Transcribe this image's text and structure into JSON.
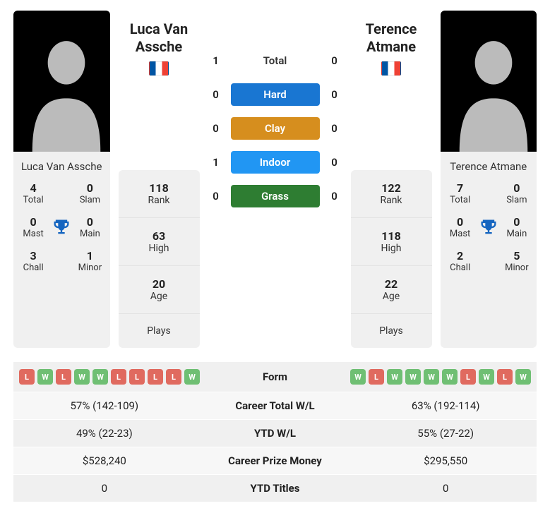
{
  "colors": {
    "hard": "#1976d2",
    "clay": "#d68e1e",
    "indoor": "#2196f3",
    "grass": "#2e7d32",
    "win_chip": "#6fbf73",
    "loss_chip": "#e06a5f",
    "panel_bg": "#f0f0f0",
    "trophy": "#1565c0"
  },
  "player1": {
    "name": "Luca Van Assche",
    "rank": "118",
    "high": "63",
    "age": "20",
    "plays": "",
    "trophies": {
      "total": "4",
      "slam": "0",
      "mast": "0",
      "main": "0",
      "chall": "3",
      "minor": "1"
    }
  },
  "player2": {
    "name": "Terence Atmane",
    "rank": "122",
    "high": "118",
    "age": "22",
    "plays": "",
    "trophies": {
      "total": "7",
      "slam": "0",
      "mast": "0",
      "main": "0",
      "chall": "2",
      "minor": "5"
    }
  },
  "labels": {
    "rank": "Rank",
    "high": "High",
    "age": "Age",
    "plays": "Plays",
    "total": "Total",
    "slam": "Slam",
    "mast": "Mast",
    "main": "Main",
    "chall": "Chall",
    "minor": "Minor"
  },
  "h2h": [
    {
      "p1": "1",
      "label": "Total",
      "p2": "0",
      "pill": false
    },
    {
      "p1": "0",
      "label": "Hard",
      "p2": "0",
      "pill": true,
      "color_key": "hard"
    },
    {
      "p1": "0",
      "label": "Clay",
      "p2": "0",
      "pill": true,
      "color_key": "clay"
    },
    {
      "p1": "1",
      "label": "Indoor",
      "p2": "0",
      "pill": true,
      "color_key": "indoor"
    },
    {
      "p1": "0",
      "label": "Grass",
      "p2": "0",
      "pill": true,
      "color_key": "grass"
    }
  ],
  "form": {
    "p1": [
      "L",
      "W",
      "L",
      "W",
      "W",
      "L",
      "L",
      "L",
      "L",
      "W"
    ],
    "p2": [
      "W",
      "L",
      "W",
      "W",
      "W",
      "W",
      "L",
      "W",
      "L",
      "W"
    ]
  },
  "bottom_rows": [
    {
      "label": "Form",
      "type": "form"
    },
    {
      "label": "Career Total W/L",
      "p1": "57% (142-109)",
      "p2": "63% (192-114)"
    },
    {
      "label": "YTD W/L",
      "p1": "49% (22-23)",
      "p2": "55% (27-22)"
    },
    {
      "label": "Career Prize Money",
      "p1": "$528,240",
      "p2": "$295,550"
    },
    {
      "label": "YTD Titles",
      "p1": "0",
      "p2": "0"
    }
  ]
}
